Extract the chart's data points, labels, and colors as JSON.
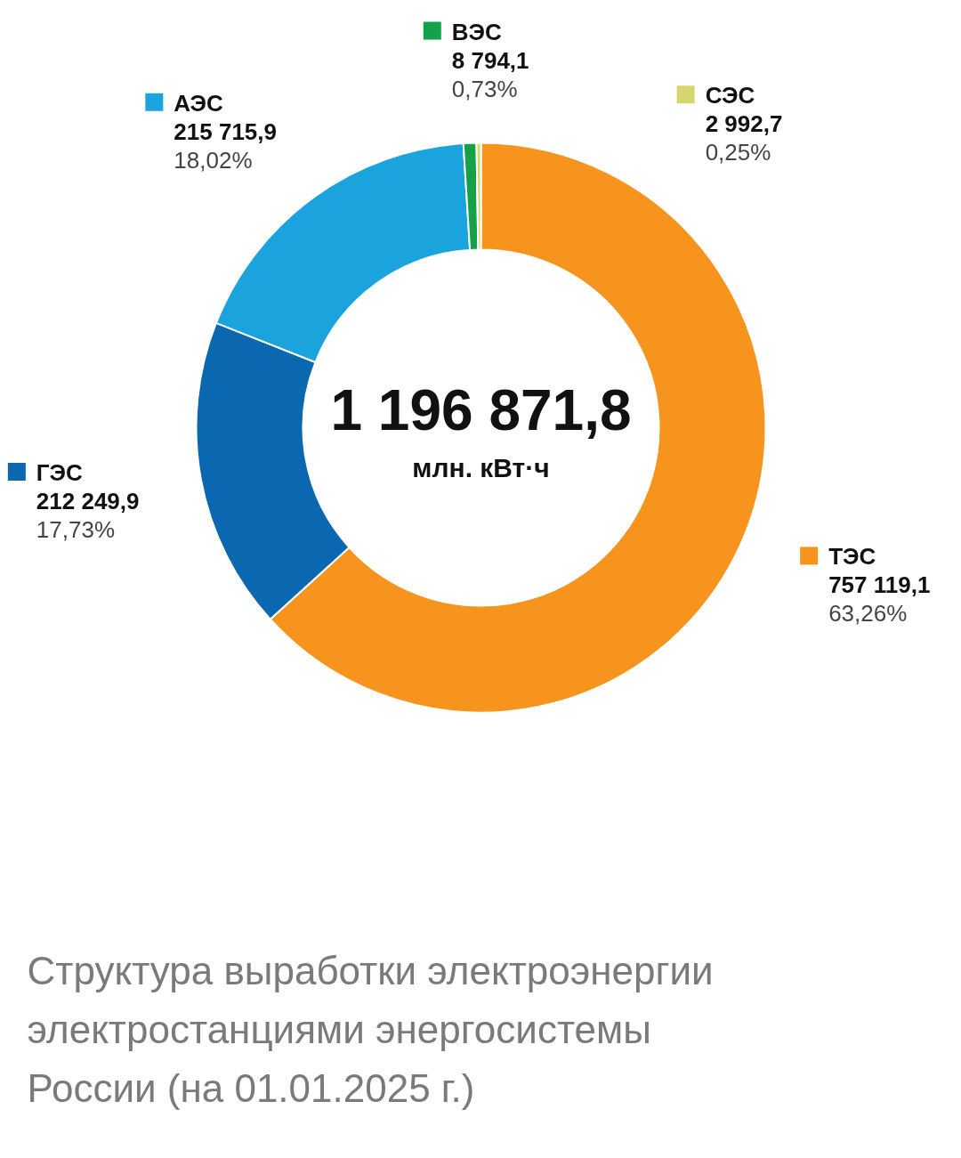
{
  "chart_data": {
    "type": "donut",
    "title": "Структура выработки электроэнергии электростанциями энергосистемы России (на 01.01.2025 г.)",
    "categories": [
      "ТЭС",
      "ГЭС",
      "АЭС",
      "ВЭС",
      "СЭС"
    ],
    "values": [
      757119.1,
      212249.9,
      215715.9,
      8794.1,
      2992.7
    ],
    "colors": [
      "#f7941d",
      "#0b68b0",
      "#1ba3de",
      "#16a04a",
      "#d6d66e"
    ],
    "value_labels": [
      "757 119,1\n63,26%",
      "212 249,9\n17,73%",
      "215 715,9\n18,02%",
      "8 794,1\n0,73%",
      "2 992,7\n0,25%"
    ],
    "annotations": [
      "1 196 871,8",
      "млн. кВт·ч"
    ],
    "legend": "top"
  }
}
